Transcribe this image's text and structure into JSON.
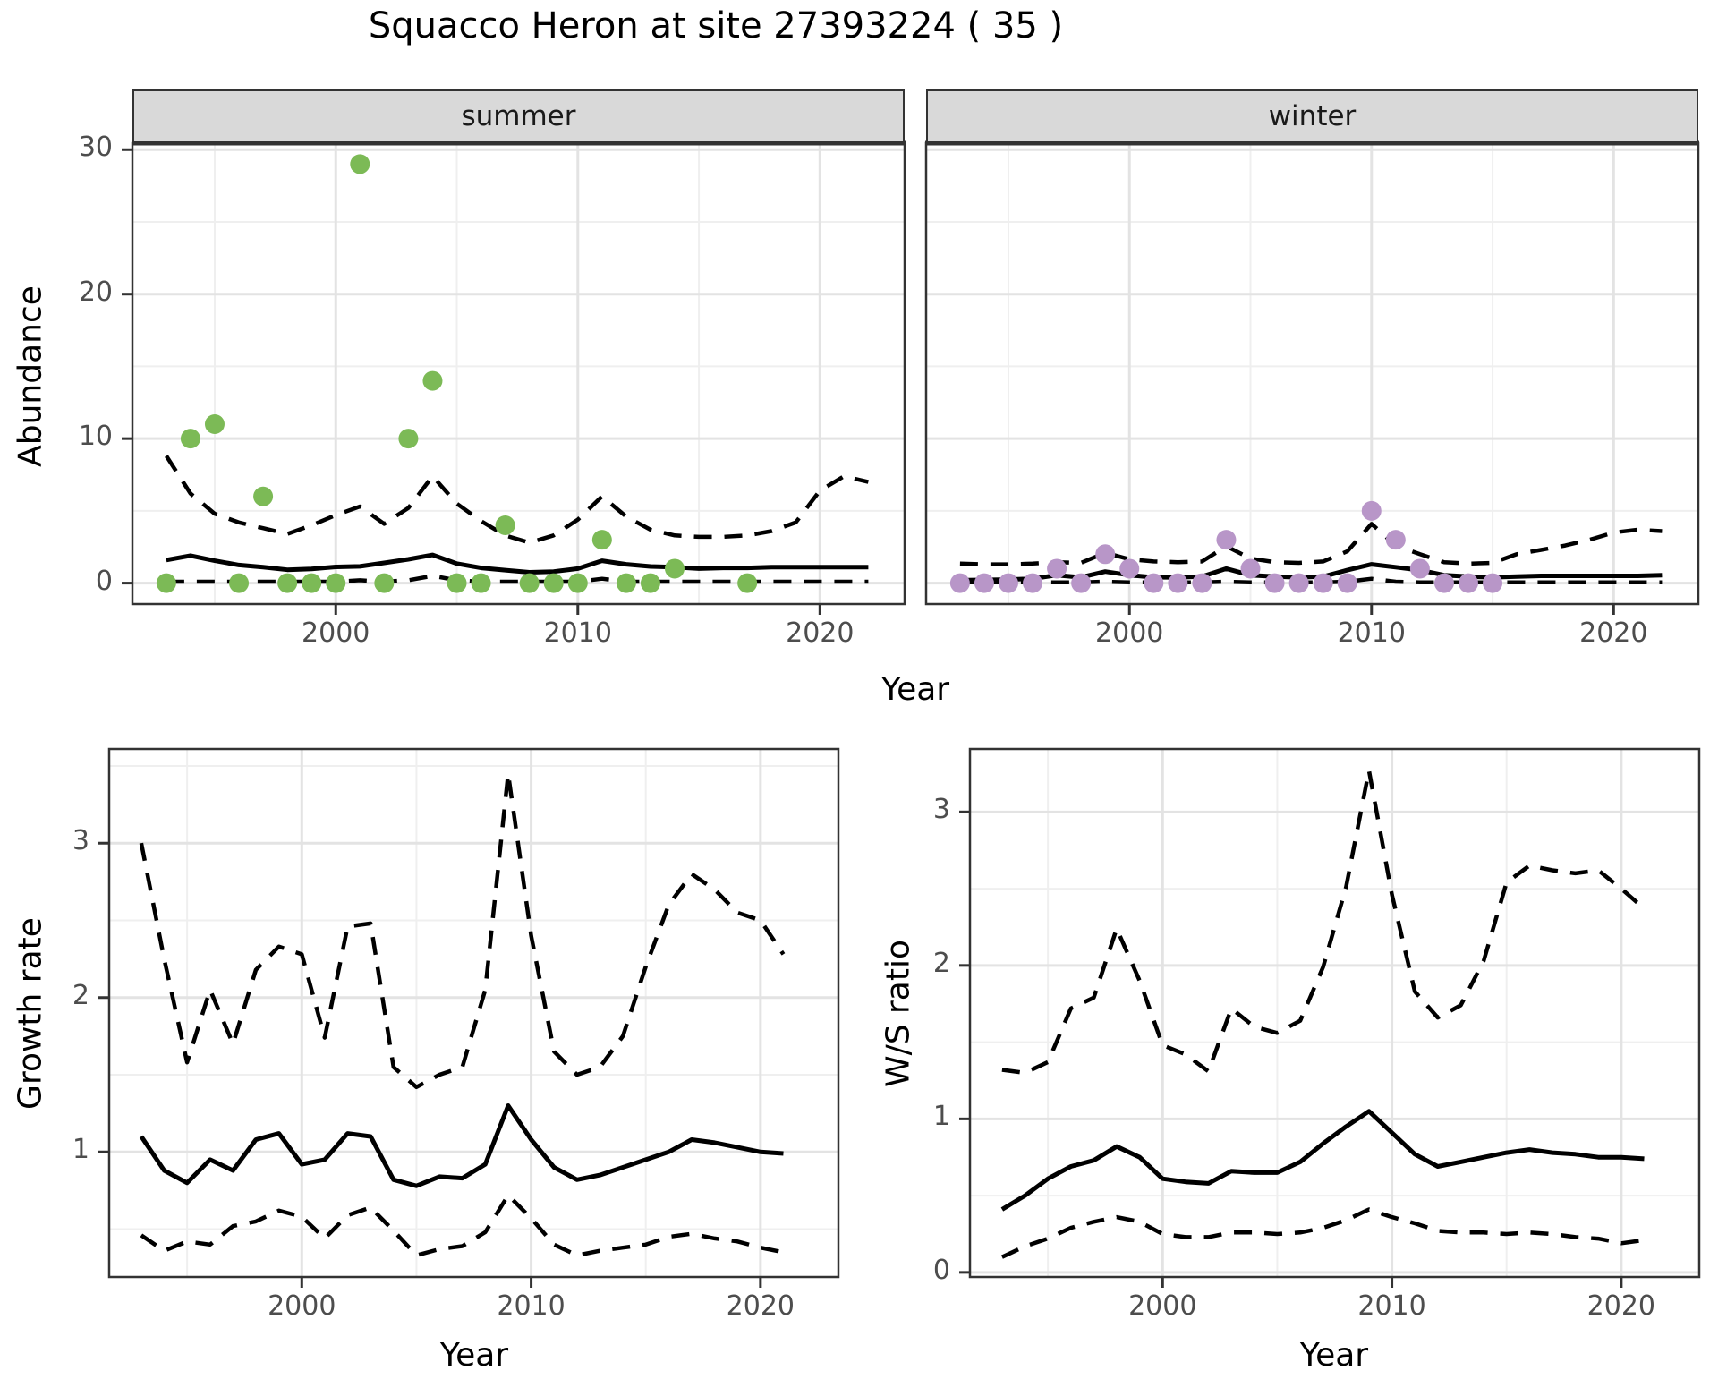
{
  "title": "Squacco Heron at site 27393224 ( 35 )",
  "colors": {
    "summer_point": "#7cba56",
    "winter_point": "#b896c8",
    "line": "#000000",
    "grid_major": "#e3e3e3",
    "grid_minor": "#efefef",
    "panel_border": "#333333",
    "strip_fill": "#d9d9d9",
    "tick": "#333333",
    "tick_label": "#4d4d4d"
  },
  "chart_data": [
    {
      "id": "abundance",
      "type": "scatter",
      "xlabel": "Year",
      "ylabel": "Abundance",
      "xlim": [
        1991.6,
        2023.5
      ],
      "ylim": [
        -1.45,
        30.45
      ],
      "xticks": [
        2000,
        2010,
        2020
      ],
      "xminor": [
        1995,
        2005,
        2015
      ],
      "yticks": [
        0,
        10,
        20,
        30
      ],
      "yminor": [
        5,
        15,
        25
      ],
      "legend_position": "none",
      "grid": "on",
      "facets": [
        {
          "label": "summer",
          "point_color": "#7cba56",
          "points": {
            "x": [
              1993,
              1994,
              1995,
              1996,
              1997,
              1998,
              1999,
              2000,
              2001,
              2002,
              2003,
              2004,
              2005,
              2006,
              2007,
              2008,
              2009,
              2010,
              2011,
              2012,
              2013,
              2014,
              2017
            ],
            "y": [
              0,
              10,
              11,
              0,
              6,
              0,
              0,
              0,
              29,
              0,
              10,
              14,
              0,
              0,
              4,
              0,
              0,
              0,
              3,
              0,
              0,
              1,
              0
            ]
          },
          "lines": {
            "x": [
              1993,
              1994,
              1995,
              1996,
              1997,
              1998,
              1999,
              2000,
              2001,
              2002,
              2003,
              2004,
              2005,
              2006,
              2007,
              2008,
              2009,
              2010,
              2011,
              2012,
              2013,
              2014,
              2015,
              2016,
              2017,
              2018,
              2019,
              2020,
              2021,
              2022
            ],
            "median": [
              1.6,
              1.9,
              1.55,
              1.25,
              1.1,
              0.92,
              0.98,
              1.12,
              1.16,
              1.4,
              1.65,
              1.95,
              1.35,
              1.05,
              0.9,
              0.75,
              0.8,
              1.0,
              1.55,
              1.3,
              1.15,
              1.1,
              1.0,
              1.05,
              1.05,
              1.1,
              1.1,
              1.1,
              1.1,
              1.1
            ],
            "upper": [
              8.8,
              6.2,
              4.8,
              4.2,
              3.8,
              3.4,
              4.0,
              4.7,
              5.3,
              4.1,
              5.2,
              7.4,
              5.5,
              4.3,
              3.3,
              2.8,
              3.3,
              4.4,
              6.0,
              4.6,
              3.7,
              3.3,
              3.2,
              3.2,
              3.3,
              3.6,
              4.2,
              6.4,
              7.4,
              7.0
            ],
            "lower": [
              0.1,
              0.1,
              0.1,
              0.1,
              0.1,
              0.1,
              0.1,
              0.1,
              0.2,
              0.1,
              0.2,
              0.5,
              0.2,
              0.1,
              0.1,
              0.1,
              0.1,
              0.1,
              0.3,
              0.1,
              0.1,
              0.1,
              0.1,
              0.1,
              0.1,
              0.1,
              0.1,
              0.1,
              0.1,
              0.1
            ]
          }
        },
        {
          "label": "winter",
          "point_color": "#b896c8",
          "points": {
            "x": [
              1993,
              1994,
              1995,
              1996,
              1997,
              1998,
              1999,
              2000,
              2001,
              2002,
              2003,
              2004,
              2005,
              2006,
              2007,
              2008,
              2009,
              2010,
              2011,
              2012,
              2013,
              2014,
              2015
            ],
            "y": [
              0,
              0,
              0,
              0,
              1,
              0,
              2,
              1,
              0,
              0,
              0,
              3,
              1,
              0,
              0,
              0,
              0,
              5,
              3,
              1,
              0,
              0,
              0
            ]
          },
          "lines": {
            "x": [
              1993,
              1994,
              1995,
              1996,
              1997,
              1998,
              1999,
              2000,
              2001,
              2002,
              2003,
              2004,
              2005,
              2006,
              2007,
              2008,
              2009,
              2010,
              2011,
              2012,
              2013,
              2014,
              2015,
              2016,
              2017,
              2018,
              2019,
              2020,
              2021,
              2022
            ],
            "median": [
              0.2,
              0.22,
              0.25,
              0.3,
              0.55,
              0.4,
              0.8,
              0.55,
              0.4,
              0.4,
              0.45,
              1.0,
              0.55,
              0.45,
              0.4,
              0.45,
              0.9,
              1.3,
              1.1,
              0.9,
              0.55,
              0.45,
              0.4,
              0.45,
              0.5,
              0.5,
              0.5,
              0.5,
              0.5,
              0.55
            ],
            "upper": [
              1.35,
              1.3,
              1.3,
              1.35,
              1.45,
              1.4,
              2.1,
              1.65,
              1.5,
              1.45,
              1.5,
              2.55,
              1.7,
              1.45,
              1.4,
              1.5,
              2.2,
              4.1,
              2.6,
              2.0,
              1.45,
              1.35,
              1.4,
              2.0,
              2.3,
              2.6,
              3.0,
              3.5,
              3.7,
              3.6
            ],
            "lower": [
              0.05,
              0.05,
              0.05,
              0.05,
              0.05,
              0.05,
              0.1,
              0.05,
              0.05,
              0.05,
              0.05,
              0.1,
              0.05,
              0.05,
              0.05,
              0.05,
              0.1,
              0.3,
              0.1,
              0.05,
              0.05,
              0.05,
              0.05,
              0.05,
              0.05,
              0.05,
              0.05,
              0.05,
              0.05,
              0.05
            ]
          }
        }
      ]
    },
    {
      "id": "growth_rate",
      "type": "line",
      "xlabel": "Year",
      "ylabel": "Growth rate",
      "xlim": [
        1991.6,
        2023.4
      ],
      "ylim": [
        0.19,
        3.61
      ],
      "xticks": [
        2000,
        2010,
        2020
      ],
      "xminor": [
        1995,
        2005,
        2015
      ],
      "yticks": [
        1,
        2,
        3
      ],
      "yminor": [
        0.5,
        1.5,
        2.5,
        3.5
      ],
      "grid": "on",
      "x": [
        1993,
        1994,
        1995,
        1996,
        1997,
        1998,
        1999,
        2000,
        2001,
        2002,
        2003,
        2004,
        2005,
        2006,
        2007,
        2008,
        2009,
        2010,
        2011,
        2012,
        2013,
        2014,
        2015,
        2016,
        2017,
        2018,
        2019,
        2020,
        2021
      ],
      "series": [
        {
          "name": "median",
          "style": "solid",
          "values": [
            1.1,
            0.88,
            0.8,
            0.95,
            0.88,
            1.08,
            1.12,
            0.92,
            0.95,
            1.12,
            1.1,
            0.82,
            0.78,
            0.84,
            0.83,
            0.92,
            1.3,
            1.08,
            0.9,
            0.82,
            0.85,
            0.9,
            0.95,
            1.0,
            1.08,
            1.06,
            1.03,
            1.0,
            0.99
          ]
        },
        {
          "name": "upper_ci",
          "style": "dashed",
          "values": [
            3.0,
            2.25,
            1.58,
            2.05,
            1.7,
            2.18,
            2.33,
            2.28,
            1.74,
            2.46,
            2.48,
            1.55,
            1.42,
            1.5,
            1.55,
            2.05,
            3.45,
            2.4,
            1.65,
            1.5,
            1.55,
            1.75,
            2.2,
            2.6,
            2.8,
            2.7,
            2.55,
            2.5,
            2.28
          ]
        },
        {
          "name": "lower_ci",
          "style": "dashed",
          "values": [
            0.46,
            0.36,
            0.42,
            0.4,
            0.52,
            0.55,
            0.62,
            0.58,
            0.44,
            0.59,
            0.64,
            0.49,
            0.33,
            0.37,
            0.39,
            0.48,
            0.72,
            0.57,
            0.4,
            0.33,
            0.36,
            0.38,
            0.4,
            0.45,
            0.47,
            0.44,
            0.42,
            0.38,
            0.35
          ]
        }
      ]
    },
    {
      "id": "ws_ratio",
      "type": "line",
      "xlabel": "Year",
      "ylabel": "W/S ratio",
      "xlim": [
        1991.6,
        2023.4
      ],
      "ylim": [
        -0.03,
        3.41
      ],
      "xticks": [
        2000,
        2010,
        2020
      ],
      "xminor": [
        1995,
        2005,
        2015
      ],
      "yticks": [
        0,
        1,
        2,
        3
      ],
      "yminor": [
        0.5,
        1.5,
        2.5
      ],
      "grid": "on",
      "x": [
        1993,
        1994,
        1995,
        1996,
        1997,
        1998,
        1999,
        2000,
        2001,
        2002,
        2003,
        2004,
        2005,
        2006,
        2007,
        2008,
        2009,
        2010,
        2011,
        2012,
        2013,
        2014,
        2015,
        2016,
        2017,
        2018,
        2019,
        2020,
        2021
      ],
      "series": [
        {
          "name": "median",
          "style": "solid",
          "values": [
            0.41,
            0.5,
            0.61,
            0.69,
            0.73,
            0.82,
            0.75,
            0.61,
            0.59,
            0.58,
            0.66,
            0.65,
            0.65,
            0.72,
            0.84,
            0.95,
            1.05,
            0.91,
            0.77,
            0.69,
            0.72,
            0.75,
            0.78,
            0.8,
            0.78,
            0.77,
            0.75,
            0.75,
            0.74
          ]
        },
        {
          "name": "upper_ci",
          "style": "dashed",
          "values": [
            1.32,
            1.3,
            1.37,
            1.72,
            1.79,
            2.24,
            1.9,
            1.48,
            1.42,
            1.31,
            1.72,
            1.6,
            1.56,
            1.64,
            1.99,
            2.51,
            3.27,
            2.46,
            1.83,
            1.66,
            1.74,
            2.03,
            2.54,
            2.65,
            2.62,
            2.6,
            2.62,
            2.5,
            2.37
          ]
        },
        {
          "name": "lower_ci",
          "style": "dashed",
          "values": [
            0.1,
            0.17,
            0.22,
            0.29,
            0.33,
            0.36,
            0.33,
            0.25,
            0.23,
            0.23,
            0.26,
            0.26,
            0.25,
            0.26,
            0.29,
            0.34,
            0.41,
            0.36,
            0.32,
            0.27,
            0.26,
            0.26,
            0.25,
            0.26,
            0.25,
            0.23,
            0.22,
            0.19,
            0.21
          ]
        }
      ]
    }
  ]
}
